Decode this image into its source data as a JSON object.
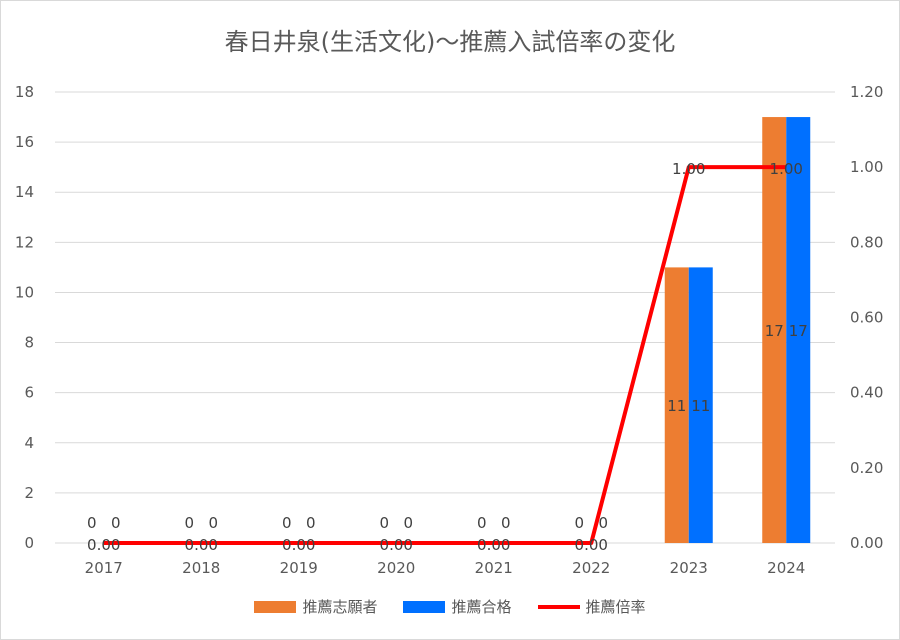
{
  "chart_data": {
    "type": "bar",
    "title": "春日井泉(生活文化)～推薦入試倍率の変化",
    "categories": [
      "2017",
      "2018",
      "2019",
      "2020",
      "2021",
      "2022",
      "2023",
      "2024"
    ],
    "series": [
      {
        "name": "推薦志願者",
        "kind": "bar",
        "axis": "left",
        "color": "#ed7d31",
        "values": [
          0,
          0,
          0,
          0,
          0,
          0,
          11,
          17
        ]
      },
      {
        "name": "推薦合格",
        "kind": "bar",
        "axis": "left",
        "color": "#0070ff",
        "values": [
          0,
          0,
          0,
          0,
          0,
          0,
          11,
          17
        ]
      },
      {
        "name": "推薦倍率",
        "kind": "line",
        "axis": "right",
        "color": "#ff0000",
        "values": [
          0.0,
          0.0,
          0.0,
          0.0,
          0.0,
          0.0,
          1.0,
          1.0
        ]
      }
    ],
    "y_left": {
      "min": 0,
      "max": 18,
      "step": 2,
      "ticks": [
        "0",
        "2",
        "4",
        "6",
        "8",
        "10",
        "12",
        "14",
        "16",
        "18"
      ]
    },
    "y_right": {
      "min": 0,
      "max": 1.2,
      "step": 0.2,
      "ticks": [
        "0.00",
        "0.20",
        "0.40",
        "0.60",
        "0.80",
        "1.00",
        "1.20"
      ]
    },
    "bar_labels": [
      [
        "0",
        "0",
        "0",
        "0",
        "0",
        "0",
        "11",
        "17"
      ],
      [
        "0",
        "0",
        "0",
        "0",
        "0",
        "0",
        "11",
        "17"
      ]
    ],
    "line_labels": [
      "0.00",
      "0.00",
      "0.00",
      "0.00",
      "0.00",
      "0.00",
      "1.00",
      "1.00"
    ],
    "grid": true,
    "legend_position": "bottom"
  }
}
